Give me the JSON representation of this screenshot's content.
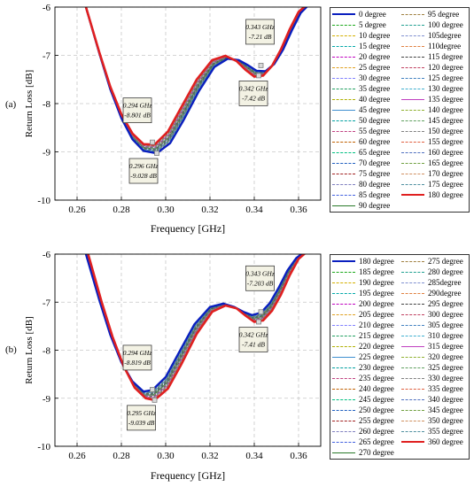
{
  "chart_data": [
    {
      "type": "line",
      "panel_label": "(a)",
      "xlabel": "Frequency [GHz]",
      "ylabel": "Return Loss [dB]",
      "xlim": [
        0.25,
        0.37
      ],
      "ylim": [
        -10,
        -6
      ],
      "x_ticks": [
        "0.26",
        "0.28",
        "0.30",
        "0.32",
        "0.34",
        "0.36"
      ],
      "y_ticks": [
        "-6",
        "-7",
        "-8",
        "-9",
        "-10"
      ],
      "grid": true,
      "legend_position": "right",
      "legend": [
        {
          "label": "0   degree",
          "color": "#0a1fbf",
          "width": 2.4,
          "dash": ""
        },
        {
          "label": "5   degree",
          "color": "#1aa81a",
          "width": 1,
          "dash": "3,2"
        },
        {
          "label": "10  degree",
          "color": "#d4b000",
          "width": 1,
          "dash": "3,2"
        },
        {
          "label": "15  degree",
          "color": "#00a8a8",
          "width": 1,
          "dash": "3,2"
        },
        {
          "label": "20  degree",
          "color": "#c000c0",
          "width": 1,
          "dash": "3,2"
        },
        {
          "label": "25  degree",
          "color": "#e0a020",
          "width": 1,
          "dash": "3,2"
        },
        {
          "label": "30  degree",
          "color": "#7f7fff",
          "width": 1,
          "dash": "3,2"
        },
        {
          "label": "35  degree",
          "color": "#20a060",
          "width": 1,
          "dash": "3,2"
        },
        {
          "label": "40  degree",
          "color": "#b0b000",
          "width": 1,
          "dash": "3,2"
        },
        {
          "label": "45  degree",
          "color": "#3f8fd0",
          "width": 1.2,
          "dash": ""
        },
        {
          "label": "50  degree",
          "color": "#00a0a0",
          "width": 1,
          "dash": "3,2"
        },
        {
          "label": "55  degree",
          "color": "#c04080",
          "width": 1,
          "dash": "3,2"
        },
        {
          "label": "60  degree",
          "color": "#c06000",
          "width": 1,
          "dash": "3,2"
        },
        {
          "label": "65  degree",
          "color": "#00c080",
          "width": 1,
          "dash": "3,2"
        },
        {
          "label": "70  degree",
          "color": "#2060c0",
          "width": 1,
          "dash": "3,2"
        },
        {
          "label": "75  degree",
          "color": "#a02020",
          "width": 1,
          "dash": "3,2"
        },
        {
          "label": "80  degree",
          "color": "#8080c0",
          "width": 1,
          "dash": "3,2"
        },
        {
          "label": "85  degree",
          "color": "#4060e0",
          "width": 1,
          "dash": "3,2"
        },
        {
          "label": "90  degree",
          "color": "#2a7a2a",
          "width": 1.4,
          "dash": ""
        },
        {
          "label": "95  degree",
          "color": "#a08040",
          "width": 1,
          "dash": "3,2"
        },
        {
          "label": "100 degree",
          "color": "#20a090",
          "width": 1,
          "dash": "3,2"
        },
        {
          "label": "105degree",
          "color": "#8090d0",
          "width": 1,
          "dash": "3,2"
        },
        {
          "label": "110degree",
          "color": "#e08040",
          "width": 1,
          "dash": "3,2"
        },
        {
          "label": "115 degree",
          "color": "#404040",
          "width": 1,
          "dash": "3,2"
        },
        {
          "label": "120 degree",
          "color": "#c04060",
          "width": 1,
          "dash": "3,2"
        },
        {
          "label": "125 degree",
          "color": "#4080c0",
          "width": 1,
          "dash": "3,2"
        },
        {
          "label": "130 degree",
          "color": "#40b0d0",
          "width": 1,
          "dash": "3,2"
        },
        {
          "label": "135 degree",
          "color": "#c040c0",
          "width": 1.2,
          "dash": ""
        },
        {
          "label": "140 degree",
          "color": "#90b030",
          "width": 1,
          "dash": "3,2"
        },
        {
          "label": "145 degree",
          "color": "#60a060",
          "width": 1,
          "dash": "3,2"
        },
        {
          "label": "150 degree",
          "color": "#808080",
          "width": 1,
          "dash": "3,2"
        },
        {
          "label": "155 degree",
          "color": "#e06040",
          "width": 1,
          "dash": "3,2"
        },
        {
          "label": "160 degree",
          "color": "#5070c0",
          "width": 1,
          "dash": "3,2"
        },
        {
          "label": "165 degree",
          "color": "#70a040",
          "width": 1,
          "dash": "3,2"
        },
        {
          "label": "170 degree",
          "color": "#d09060",
          "width": 1,
          "dash": "3,2"
        },
        {
          "label": "175 degree",
          "color": "#5090a0",
          "width": 1,
          "dash": "3,2"
        },
        {
          "label": "180 degree",
          "color": "#e02020",
          "width": 2.4,
          "dash": ""
        }
      ],
      "series": [
        {
          "name": "0   degree",
          "x": [
            0.264,
            0.27,
            0.275,
            0.28,
            0.285,
            0.29,
            0.296,
            0.302,
            0.308,
            0.315,
            0.322,
            0.328,
            0.333,
            0.337,
            0.341,
            0.345,
            0.349,
            0.353,
            0.357,
            0.361,
            0.364
          ],
          "y": [
            -6.0,
            -6.95,
            -7.7,
            -8.3,
            -8.74,
            -8.98,
            -9.03,
            -8.82,
            -8.35,
            -7.74,
            -7.24,
            -7.07,
            -7.1,
            -7.2,
            -7.32,
            -7.33,
            -7.18,
            -6.88,
            -6.48,
            -6.12,
            -5.98
          ]
        },
        {
          "name": "180 degree",
          "x": [
            0.264,
            0.27,
            0.275,
            0.28,
            0.285,
            0.29,
            0.295,
            0.301,
            0.307,
            0.314,
            0.321,
            0.327,
            0.332,
            0.336,
            0.34,
            0.344,
            0.348,
            0.352,
            0.356,
            0.36,
            0.363
          ],
          "y": [
            -6.0,
            -6.93,
            -7.65,
            -8.22,
            -8.62,
            -8.84,
            -8.85,
            -8.58,
            -8.08,
            -7.5,
            -7.1,
            -7.01,
            -7.12,
            -7.3,
            -7.44,
            -7.42,
            -7.22,
            -6.88,
            -6.46,
            -6.1,
            -5.98
          ]
        }
      ],
      "annotations": [
        {
          "lines": [
            "0.294 GHz",
            "-8.801 dB"
          ],
          "x": 0.294,
          "y": -8.801
        },
        {
          "lines": [
            "0.296 GHz",
            "-9.028 dB"
          ],
          "x": 0.296,
          "y": -9.028
        },
        {
          "lines": [
            "0.343 GHz",
            "-7.21 dB"
          ],
          "x": 0.343,
          "y": -7.21
        },
        {
          "lines": [
            "0.342 GHz",
            "-7.42 dB"
          ],
          "x": 0.342,
          "y": -7.42
        }
      ]
    },
    {
      "type": "line",
      "panel_label": "(b)",
      "xlabel": "Frequency [GHz]",
      "ylabel": "Return Loss [dB]",
      "xlim": [
        0.25,
        0.37
      ],
      "ylim": [
        -10,
        -6
      ],
      "x_ticks": [
        "0.26",
        "0.28",
        "0.30",
        "0.32",
        "0.34",
        "0.36"
      ],
      "y_ticks": [
        "-6",
        "-7",
        "-8",
        "-9",
        "-10"
      ],
      "grid": true,
      "legend_position": "right",
      "legend": [
        {
          "label": "180 degree",
          "color": "#0a1fbf",
          "width": 2.4,
          "dash": ""
        },
        {
          "label": "185 degree",
          "color": "#1aa81a",
          "width": 1,
          "dash": "3,2"
        },
        {
          "label": "190 degree",
          "color": "#d4b000",
          "width": 1,
          "dash": "3,2"
        },
        {
          "label": "195 degree",
          "color": "#00a8a8",
          "width": 1,
          "dash": "3,2"
        },
        {
          "label": "200 degree",
          "color": "#c000c0",
          "width": 1,
          "dash": "3,2"
        },
        {
          "label": "205 degree",
          "color": "#e0a020",
          "width": 1,
          "dash": "3,2"
        },
        {
          "label": "210 degree",
          "color": "#7f7fff",
          "width": 1,
          "dash": "3,2"
        },
        {
          "label": "215 degree",
          "color": "#20a060",
          "width": 1,
          "dash": "3,2"
        },
        {
          "label": "220 degree",
          "color": "#b0b000",
          "width": 1,
          "dash": "3,2"
        },
        {
          "label": "225 degree",
          "color": "#3f8fd0",
          "width": 1.2,
          "dash": ""
        },
        {
          "label": "230 degree",
          "color": "#00a0a0",
          "width": 1,
          "dash": "3,2"
        },
        {
          "label": "235 degree",
          "color": "#c04080",
          "width": 1,
          "dash": "3,2"
        },
        {
          "label": "240 degree",
          "color": "#c06000",
          "width": 1,
          "dash": "3,2"
        },
        {
          "label": "245 degree",
          "color": "#00c080",
          "width": 1,
          "dash": "3,2"
        },
        {
          "label": "250 degree",
          "color": "#2060c0",
          "width": 1,
          "dash": "3,2"
        },
        {
          "label": "255 degree",
          "color": "#a02020",
          "width": 1,
          "dash": "3,2"
        },
        {
          "label": "260 degree",
          "color": "#8080c0",
          "width": 1,
          "dash": "3,2"
        },
        {
          "label": "265 degree",
          "color": "#4060e0",
          "width": 1,
          "dash": "3,2"
        },
        {
          "label": "270 degree",
          "color": "#2a7a2a",
          "width": 1.4,
          "dash": ""
        },
        {
          "label": "275 degree",
          "color": "#a08040",
          "width": 1,
          "dash": "3,2"
        },
        {
          "label": "280 degree",
          "color": "#20a090",
          "width": 1,
          "dash": "3,2"
        },
        {
          "label": "285degree",
          "color": "#8090d0",
          "width": 1,
          "dash": "3,2"
        },
        {
          "label": "290degree",
          "color": "#e08040",
          "width": 1,
          "dash": "3,2"
        },
        {
          "label": "295 degree",
          "color": "#404040",
          "width": 1,
          "dash": "3,2"
        },
        {
          "label": "300 degree",
          "color": "#c04060",
          "width": 1,
          "dash": "3,2"
        },
        {
          "label": "305 degree",
          "color": "#4080c0",
          "width": 1,
          "dash": "3,2"
        },
        {
          "label": "310 degree",
          "color": "#40b0d0",
          "width": 1,
          "dash": "3,2"
        },
        {
          "label": "315 degree",
          "color": "#c040c0",
          "width": 1.2,
          "dash": ""
        },
        {
          "label": "320 degree",
          "color": "#90b030",
          "width": 1,
          "dash": "3,2"
        },
        {
          "label": "325 degree",
          "color": "#60a060",
          "width": 1,
          "dash": "3,2"
        },
        {
          "label": "330 degree",
          "color": "#808080",
          "width": 1,
          "dash": "3,2"
        },
        {
          "label": "335 degree",
          "color": "#e06040",
          "width": 1,
          "dash": "3,2"
        },
        {
          "label": "340 degree",
          "color": "#5070c0",
          "width": 1,
          "dash": "3,2"
        },
        {
          "label": "345 degree",
          "color": "#70a040",
          "width": 1,
          "dash": "3,2"
        },
        {
          "label": "350 degree",
          "color": "#d09060",
          "width": 1,
          "dash": "3,2"
        },
        {
          "label": "355 degree",
          "color": "#5090a0",
          "width": 1,
          "dash": "3,2"
        },
        {
          "label": "360 degree",
          "color": "#e02020",
          "width": 2.4,
          "dash": ""
        }
      ],
      "series": [
        {
          "name": "180 degree",
          "x": [
            0.264,
            0.27,
            0.275,
            0.28,
            0.285,
            0.29,
            0.294,
            0.3,
            0.306,
            0.313,
            0.32,
            0.326,
            0.331,
            0.335,
            0.339,
            0.343,
            0.347,
            0.351,
            0.355,
            0.359,
            0.362
          ],
          "y": [
            -6.0,
            -6.95,
            -7.68,
            -8.25,
            -8.65,
            -8.86,
            -8.83,
            -8.56,
            -8.05,
            -7.46,
            -7.1,
            -7.03,
            -7.1,
            -7.2,
            -7.27,
            -7.22,
            -7.02,
            -6.7,
            -6.34,
            -6.08,
            -5.98
          ]
        },
        {
          "name": "360 degree",
          "x": [
            0.265,
            0.271,
            0.276,
            0.281,
            0.286,
            0.291,
            0.295,
            0.301,
            0.307,
            0.314,
            0.321,
            0.327,
            0.332,
            0.336,
            0.34,
            0.344,
            0.348,
            0.352,
            0.356,
            0.36,
            0.363
          ],
          "y": [
            -6.0,
            -6.98,
            -7.72,
            -8.33,
            -8.78,
            -9.0,
            -9.04,
            -8.8,
            -8.3,
            -7.66,
            -7.2,
            -7.07,
            -7.13,
            -7.28,
            -7.41,
            -7.38,
            -7.18,
            -6.85,
            -6.44,
            -6.1,
            -5.98
          ]
        }
      ],
      "annotations": [
        {
          "lines": [
            "0.294 GHz",
            "-8.819 dB"
          ],
          "x": 0.294,
          "y": -8.819
        },
        {
          "lines": [
            "0.295 GHz",
            "-9.039 dB"
          ],
          "x": 0.295,
          "y": -9.039
        },
        {
          "lines": [
            "0.343 GHz",
            "-7.203 dB"
          ],
          "x": 0.343,
          "y": -7.203
        },
        {
          "lines": [
            "0.342 GHz",
            "-7.41 dB"
          ],
          "x": 0.342,
          "y": -7.41
        }
      ]
    }
  ]
}
